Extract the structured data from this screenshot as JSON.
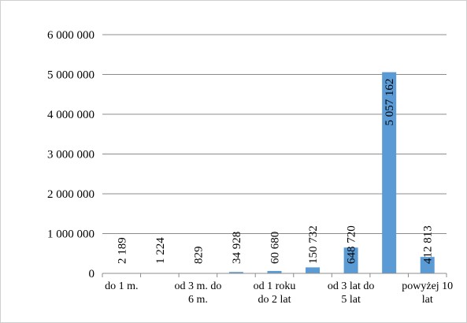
{
  "chart_data": {
    "type": "bar",
    "categories": [
      "do 1 m.",
      "",
      "od 3 m. do 6 m.",
      "",
      "od 1 roku do 2 lat",
      "",
      "od 3 lat do 5 lat",
      "",
      "powyżej 10 lat"
    ],
    "category_lines": [
      [
        "do 1 m."
      ],
      [],
      [
        "od 3 m. do",
        "6 m."
      ],
      [],
      [
        "od 1 roku",
        "do 2 lat"
      ],
      [],
      [
        "od 3 lat do",
        "5 lat"
      ],
      [],
      [
        "powyżej 10",
        "lat"
      ]
    ],
    "values": [
      2189,
      1224,
      829,
      34928,
      60680,
      150732,
      648720,
      5057162,
      412813
    ],
    "data_labels": [
      "2 189",
      "1 224",
      "829",
      "34 928",
      "60 680",
      "150 732",
      "648 720",
      "5 057 162",
      "412 813"
    ],
    "ylim": [
      0,
      6000000
    ],
    "y_ticks": [
      0,
      1000000,
      2000000,
      3000000,
      4000000,
      5000000,
      6000000
    ],
    "y_tick_labels": [
      "0",
      "1 000 000",
      "2 000 000",
      "3 000 000",
      "4 000 000",
      "5 000 000",
      "6 000 000"
    ],
    "grid": true,
    "bar_color": "#5b9bd5",
    "gridline_color": "#8c8c8c",
    "title": "",
    "xlabel": "",
    "ylabel": ""
  }
}
